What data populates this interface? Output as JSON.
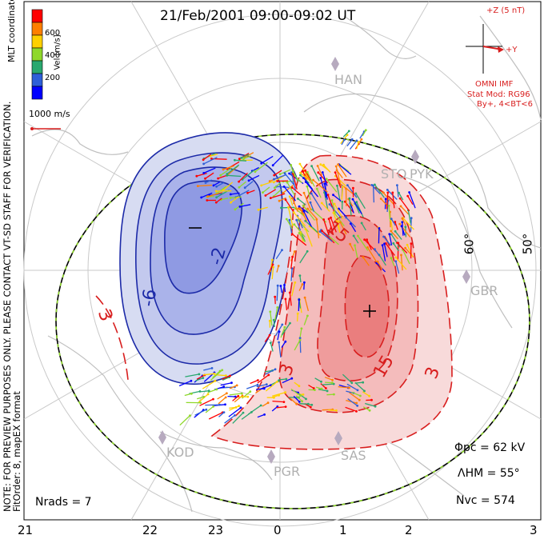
{
  "header": {
    "title": "21/Feb/2001 09:00-09:02 UT",
    "coords": "MLT coordinates",
    "note": "NOTE: FOR PREVIEW PURPOSES ONLY. PLEASE CONTACT VT-SD STAFF FOR VERIFICATION.",
    "fit": "FitOrder: 8, mapEX format"
  },
  "colorbar": {
    "label": "Vel [m/s]",
    "ticks": [
      "600",
      "400",
      "200"
    ],
    "colors": [
      "#ff0000",
      "#ff7f00",
      "#ffd000",
      "#8fd82a",
      "#29a86f",
      "#2d5fd8",
      "#0000ff"
    ]
  },
  "scale": {
    "label": "1000 m/s"
  },
  "imf": {
    "z": "+Z (5 nT)",
    "y": "+Y",
    "source": "OMNI IMF",
    "model": "Stat Mod: RG96",
    "condition": "By+, 4<BT<6"
  },
  "latitudes": [
    "60°",
    "50°"
  ],
  "stations": [
    "HAN",
    "STO",
    "PYK",
    "GBR",
    "KOD",
    "PGR",
    "SAS"
  ],
  "contours": {
    "negative": [
      "-6",
      "-2"
    ],
    "positive": [
      "3",
      "15",
      "3",
      "15",
      "3"
    ],
    "min_marker": "−",
    "max_marker": "+"
  },
  "stats": {
    "phi_pc": "Φpc = 62 kV",
    "lambda_hm": "ΛHM = 55°",
    "n_vc": "Nvc = 574",
    "n_rads": "Nrads = 7"
  },
  "mlt_axis": [
    "21",
    "22",
    "23",
    "0",
    "1",
    "2",
    "3"
  ]
}
